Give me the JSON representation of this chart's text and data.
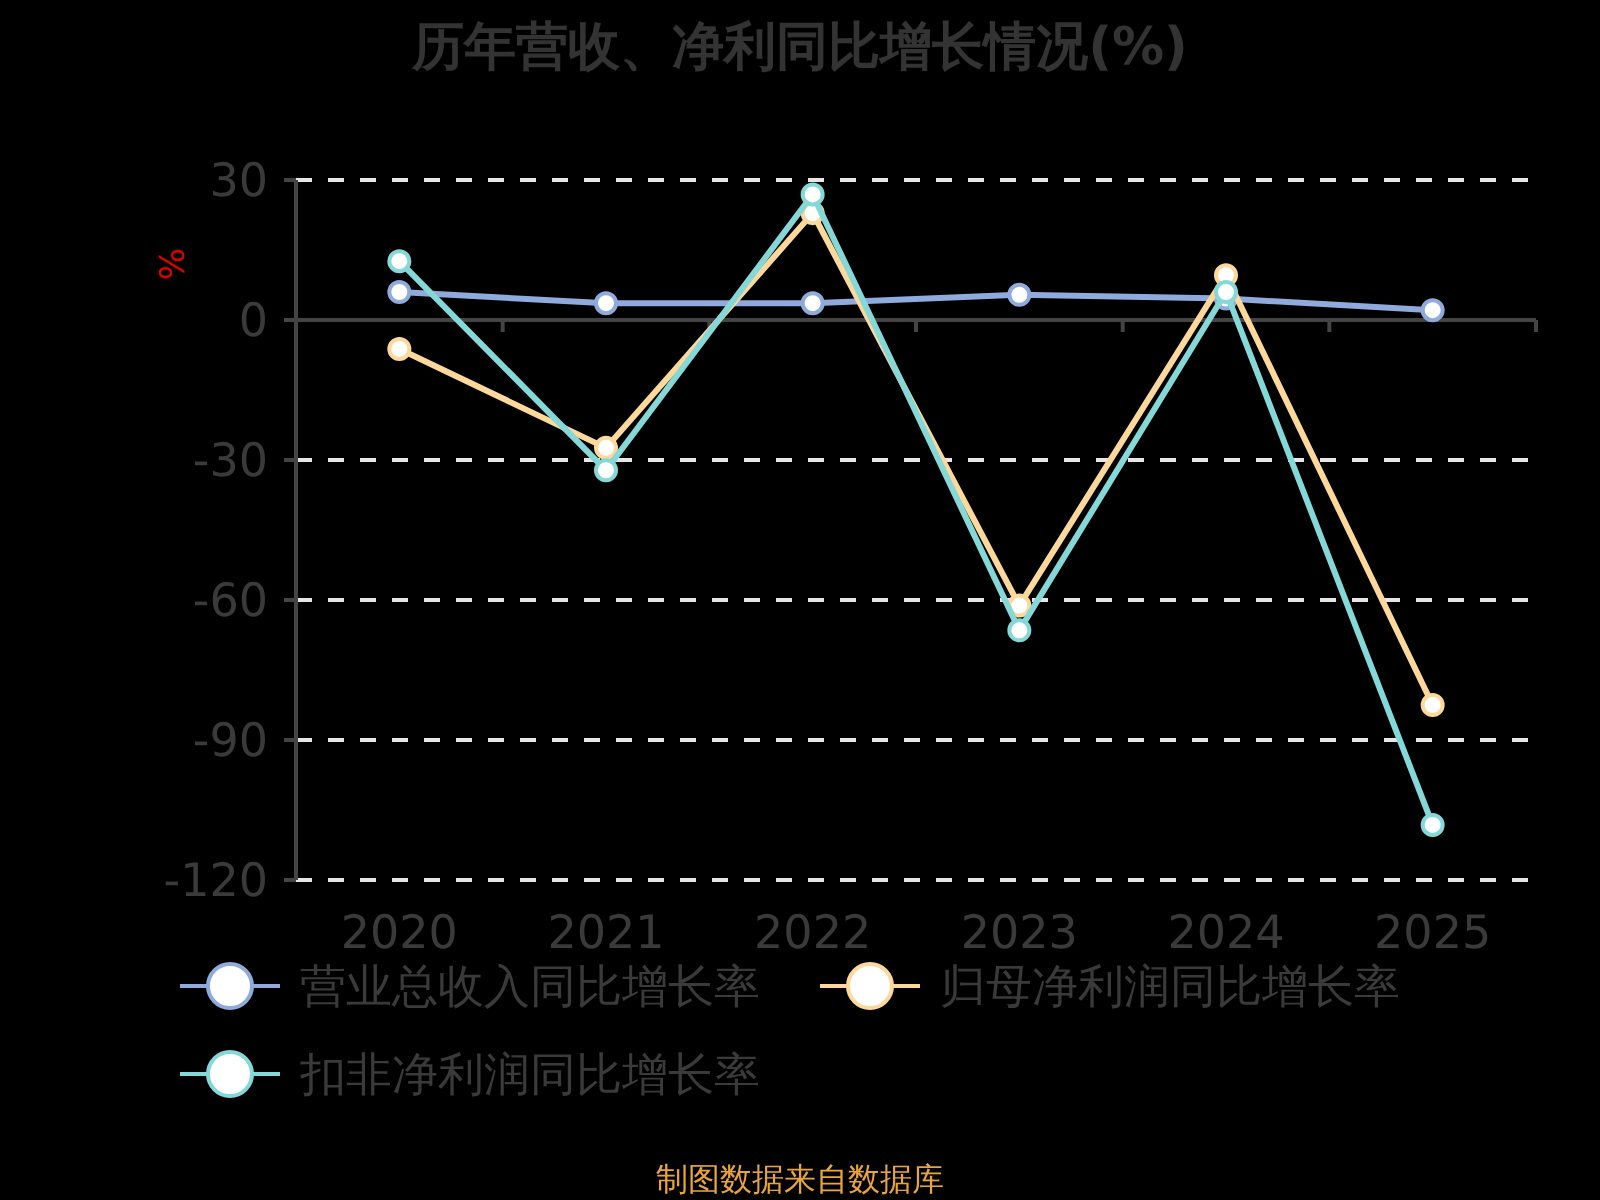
{
  "chart_data": {
    "type": "line",
    "title": "历年营收、净利同比增长情况(%)",
    "ylabel": "%",
    "categories": [
      "2020",
      "2021",
      "2022",
      "2023",
      "2024",
      "2025"
    ],
    "series": [
      {
        "name": "营业总收入同比增长率",
        "color": "#8faadc",
        "values": [
          6.0,
          3.6,
          3.6,
          5.4,
          4.6,
          2.1
        ]
      },
      {
        "name": "归母净利润同比增长率",
        "color": "#fdd89b",
        "values": [
          -6.2,
          -27.4,
          22.9,
          -61.2,
          9.6,
          -82.5
        ]
      },
      {
        "name": "扣非净利润同比增长率",
        "color": "#84d8d8",
        "values": [
          12.6,
          -32.2,
          26.9,
          -66.5,
          6.0,
          -108.2
        ]
      }
    ],
    "ylim": [
      -120,
      30
    ],
    "yticks": [
      -120,
      -90,
      -60,
      -30,
      0,
      30
    ],
    "grid": "y",
    "legend": "bottom",
    "marker": "circle",
    "line_style": "solid",
    "annotations": [
      "制图数据来自数据库"
    ]
  }
}
